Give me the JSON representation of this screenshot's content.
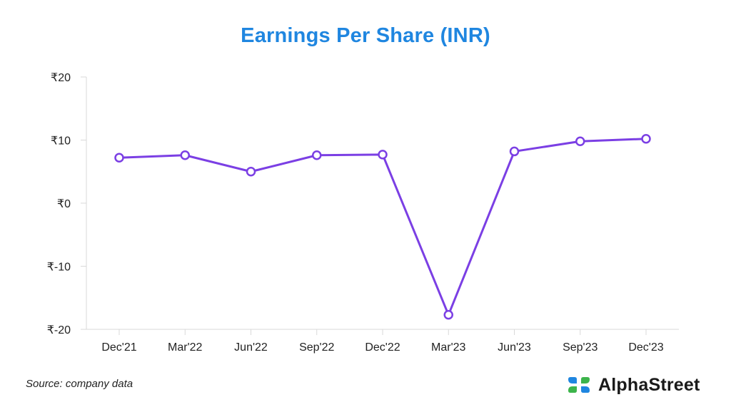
{
  "chart_data": {
    "type": "line",
    "title": "Earnings Per Share (INR)",
    "xlabel": "",
    "ylabel": "",
    "categories": [
      "Dec'21",
      "Mar'22",
      "Jun'22",
      "Sep'22",
      "Dec'22",
      "Mar'23",
      "Jun'23",
      "Sep'23",
      "Dec'23"
    ],
    "series": [
      {
        "values": [
          7.2,
          7.6,
          5.0,
          7.6,
          7.7,
          -17.7,
          8.2,
          9.8,
          10.2
        ]
      }
    ],
    "ylim": [
      -20,
      20
    ],
    "yticks": [
      20,
      10,
      0,
      -10,
      -20
    ],
    "ytick_labels": [
      "₹20",
      "₹10",
      "₹0",
      "₹-10",
      "₹-20"
    ],
    "grid": false,
    "legend": "none",
    "line_color": "#7b3fe4",
    "marker_fill": "#ffffff"
  },
  "footer": {
    "source": "Source: company data",
    "brand_name": "AlphaStreet",
    "brand_logo_icon": "alphastreet-logo-icon",
    "brand_colors": [
      "#1f86e0",
      "#3cb44b"
    ]
  }
}
